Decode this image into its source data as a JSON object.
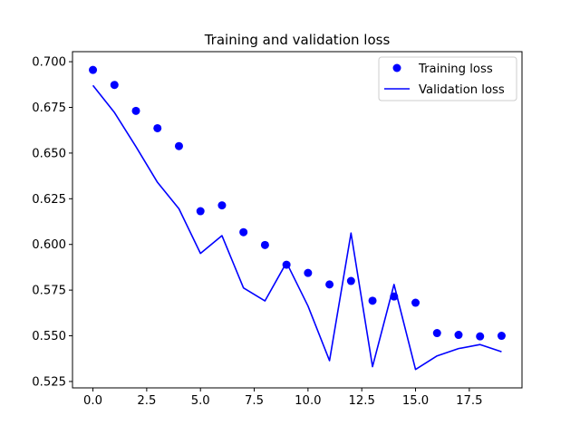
{
  "chart_data": {
    "type": "line+scatter",
    "title": "Training and validation loss",
    "xlabel": "",
    "ylabel": "",
    "xlim": [
      -0.95,
      19.95
    ],
    "ylim": [
      0.5215,
      0.7055
    ],
    "x_ticks": [
      0.0,
      2.5,
      5.0,
      7.5,
      10.0,
      12.5,
      15.0,
      17.5
    ],
    "x_tick_labels": [
      "0.0",
      "2.5",
      "5.0",
      "7.5",
      "10.0",
      "12.5",
      "15.0",
      "17.5"
    ],
    "y_ticks": [
      0.525,
      0.55,
      0.575,
      0.6,
      0.625,
      0.65,
      0.675,
      0.7
    ],
    "y_tick_labels": [
      "0.525",
      "0.550",
      "0.575",
      "0.600",
      "0.625",
      "0.650",
      "0.675",
      "0.700"
    ],
    "grid": false,
    "legend_position": "top-right",
    "x": [
      0,
      1,
      2,
      3,
      4,
      5,
      6,
      7,
      8,
      9,
      10,
      11,
      12,
      13,
      14,
      15,
      16,
      17,
      18,
      19
    ],
    "series": [
      {
        "name": "Training loss",
        "style": "markers",
        "color": "#0000ff",
        "values": [
          0.6955,
          0.6873,
          0.6731,
          0.6636,
          0.6538,
          0.6182,
          0.6214,
          0.6067,
          0.5997,
          0.5889,
          0.5844,
          0.5781,
          0.58,
          0.5692,
          0.5715,
          0.5681,
          0.5515,
          0.5505,
          0.5497,
          0.55
        ]
      },
      {
        "name": "Validation loss",
        "style": "line",
        "color": "#0000ff",
        "values": [
          0.687,
          0.6722,
          0.6535,
          0.634,
          0.6195,
          0.5951,
          0.6048,
          0.5762,
          0.5691,
          0.5901,
          0.5663,
          0.5364,
          0.6062,
          0.5331,
          0.5781,
          0.5316,
          0.539,
          0.543,
          0.5452,
          0.5413
        ]
      }
    ]
  }
}
